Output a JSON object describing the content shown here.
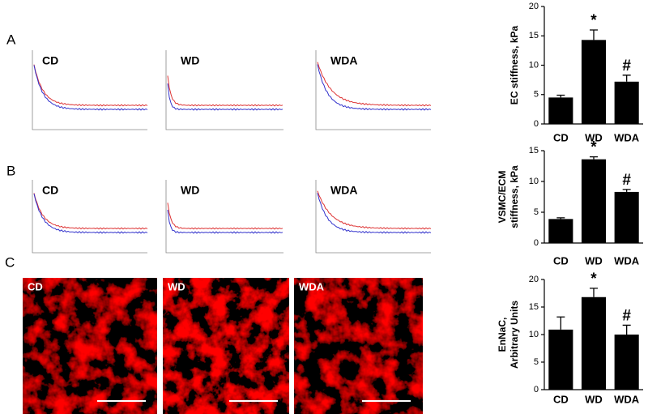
{
  "panel_letters": [
    "A",
    "B",
    "C"
  ],
  "curve_labels": [
    [
      "CD",
      "WD",
      "WDA"
    ],
    [
      "CD",
      "WD",
      "WDA"
    ]
  ],
  "image_labels": [
    "CD",
    "WD",
    "WDA"
  ],
  "chart_data": [
    {
      "type": "bar",
      "ylabel": [
        "EC stiffness, kPa"
      ],
      "categories": [
        "CD",
        "WD",
        "WDA"
      ],
      "values": [
        4.5,
        14.3,
        7.2
      ],
      "errors": [
        0.4,
        1.7,
        1.1
      ],
      "annotations": [
        null,
        "*",
        "#"
      ],
      "color": "#000000",
      "ylim": [
        0,
        20
      ],
      "yticks": [
        0,
        5,
        10,
        15,
        20
      ]
    },
    {
      "type": "bar",
      "ylabel": [
        "VSMC/ECM",
        "stiffness, kPa"
      ],
      "categories": [
        "CD",
        "WD",
        "WDA"
      ],
      "values": [
        3.9,
        13.6,
        8.3
      ],
      "errors": [
        0.2,
        0.4,
        0.4
      ],
      "annotations": [
        null,
        "*",
        "#"
      ],
      "color": "#000000",
      "ylim": [
        0,
        15
      ],
      "yticks": [
        0,
        5,
        10,
        15
      ]
    },
    {
      "type": "bar",
      "ylabel": [
        "EnNaC,",
        "Arbitrary Units"
      ],
      "categories": [
        "CD",
        "WD",
        "WDA"
      ],
      "values": [
        10.9,
        16.8,
        10.0
      ],
      "errors": [
        2.3,
        1.6,
        1.7
      ],
      "annotations": [
        null,
        "*",
        "#"
      ],
      "color": "#000000",
      "ylim": [
        0,
        20
      ],
      "yticks": [
        0,
        5,
        10,
        15,
        20
      ]
    }
  ]
}
